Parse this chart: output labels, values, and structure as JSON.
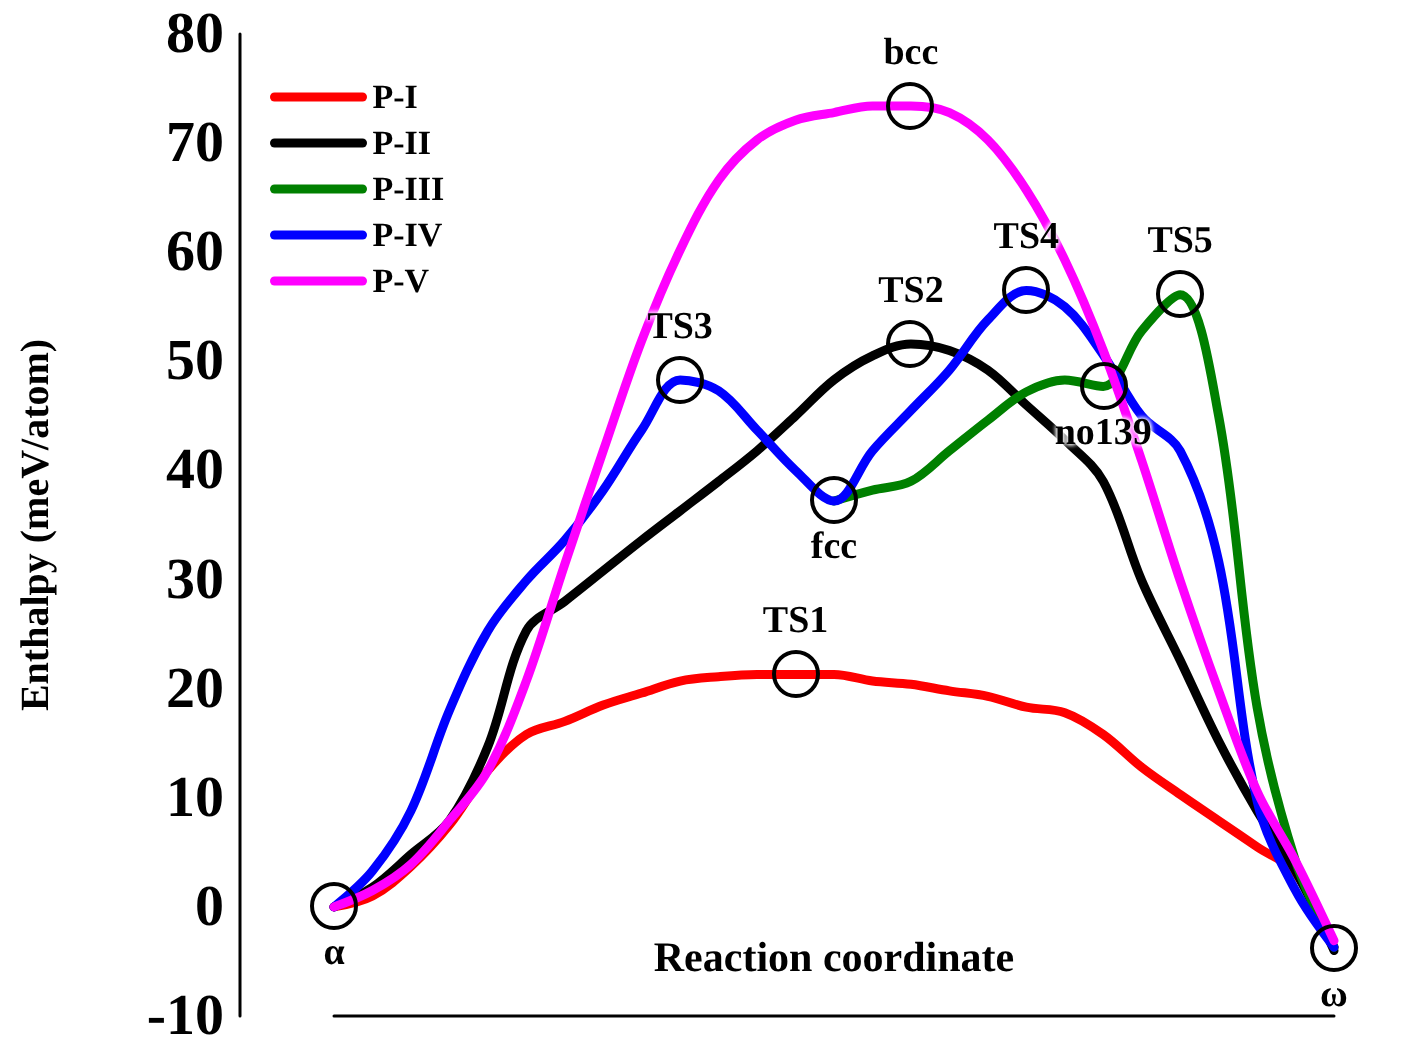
{
  "chart_data": {
    "type": "line",
    "xlabel": "Reaction coordinate",
    "ylabel": "Enthalpy (meV/atom)",
    "categories": [
      null,
      null,
      null,
      null,
      null,
      null,
      null,
      null,
      null,
      null,
      null,
      null,
      null,
      null,
      null,
      null,
      null,
      null,
      null,
      null,
      null,
      null,
      null,
      null,
      null,
      null,
      null
    ],
    "series": [
      {
        "name": "P-I",
        "color": "#ff0000",
        "values": [
          0,
          1,
          3.7,
          7.5,
          12.5,
          15.8,
          17,
          18.5,
          19.6,
          20.7,
          21.1,
          21.3,
          21.3,
          21.3,
          20.7,
          20.4,
          19.8,
          19.3,
          18.3,
          17.8,
          15.8,
          12.8,
          10.3,
          7.9,
          5.5,
          3.1,
          -3.7
        ],
        "value_labels": [
          "α",
          null,
          null,
          null,
          null,
          null,
          null,
          null,
          null,
          null,
          null,
          null,
          "TS1",
          null,
          null,
          null,
          null,
          null,
          null,
          null,
          null,
          null,
          null,
          null,
          null,
          null,
          "ω"
        ]
      },
      {
        "name": "P-II",
        "color": "#000000",
        "values": [
          0,
          1.8,
          4.8,
          7.9,
          14.7,
          25.3,
          28,
          30.8,
          33.6,
          36.3,
          39,
          41.8,
          45,
          48.3,
          50.5,
          51.6,
          51,
          49.2,
          46,
          42.8,
          39,
          29.9,
          22.6,
          15.2,
          8.8,
          3.3,
          -4
        ],
        "value_labels": [
          null,
          null,
          null,
          null,
          null,
          null,
          null,
          null,
          null,
          null,
          null,
          null,
          null,
          null,
          null,
          "TS2",
          null,
          null,
          null,
          null,
          null,
          null,
          null,
          null,
          null,
          null,
          null
        ]
      },
      {
        "name": "P-III",
        "color": "#008000",
        "values": [
          null,
          null,
          null,
          null,
          null,
          null,
          null,
          null,
          null,
          null,
          null,
          null,
          null,
          37.2,
          38.2,
          39,
          41.8,
          44.6,
          47.2,
          48.3,
          47.7,
          52.8,
          56.1,
          45,
          18.3,
          4.2,
          -3.7
        ],
        "value_labels": [
          null,
          null,
          null,
          null,
          null,
          null,
          null,
          null,
          null,
          null,
          null,
          null,
          null,
          "fcc",
          null,
          null,
          null,
          null,
          null,
          null,
          "no139",
          null,
          "TS5",
          null,
          null,
          null,
          null
        ]
      },
      {
        "name": "P-IV",
        "color": "#0000ff",
        "values": [
          0,
          3.3,
          8.8,
          18,
          25.3,
          29.9,
          33.6,
          38.2,
          43.7,
          48.3,
          47.3,
          43.7,
          40,
          37.2,
          41.8,
          45.5,
          49.2,
          53.8,
          56.5,
          55,
          50.6,
          45,
          41.8,
          31.7,
          9.7,
          1.5,
          -3.7
        ],
        "value_labels": [
          null,
          null,
          null,
          null,
          null,
          null,
          null,
          null,
          null,
          "TS3",
          null,
          null,
          null,
          null,
          null,
          null,
          null,
          null,
          "TS4",
          null,
          null,
          null,
          null,
          null,
          null,
          null,
          null
        ]
      },
      {
        "name": "P-V",
        "color": "#ff00ff",
        "values": [
          0,
          1.5,
          3.9,
          7.9,
          12.5,
          20.7,
          31.4,
          41.8,
          51.9,
          60.2,
          66.6,
          70.3,
          72.1,
          72.8,
          73.4,
          73.4,
          72.8,
          70.3,
          65.7,
          59.3,
          51,
          40.9,
          29.9,
          19.8,
          10.6,
          4.2,
          -3.1
        ],
        "value_labels": [
          null,
          null,
          null,
          null,
          null,
          null,
          null,
          null,
          null,
          null,
          null,
          null,
          null,
          null,
          null,
          "bcc",
          null,
          null,
          null,
          null,
          null,
          null,
          null,
          null,
          null,
          null,
          null
        ]
      }
    ],
    "ylim": [
      -10,
      80
    ],
    "yticks": [
      -10,
      0,
      10,
      20,
      30,
      40,
      50,
      60,
      70,
      80
    ],
    "tick_labels": "y",
    "grid": false,
    "legend": "top left",
    "marker": "none",
    "line_style": "solid"
  }
}
